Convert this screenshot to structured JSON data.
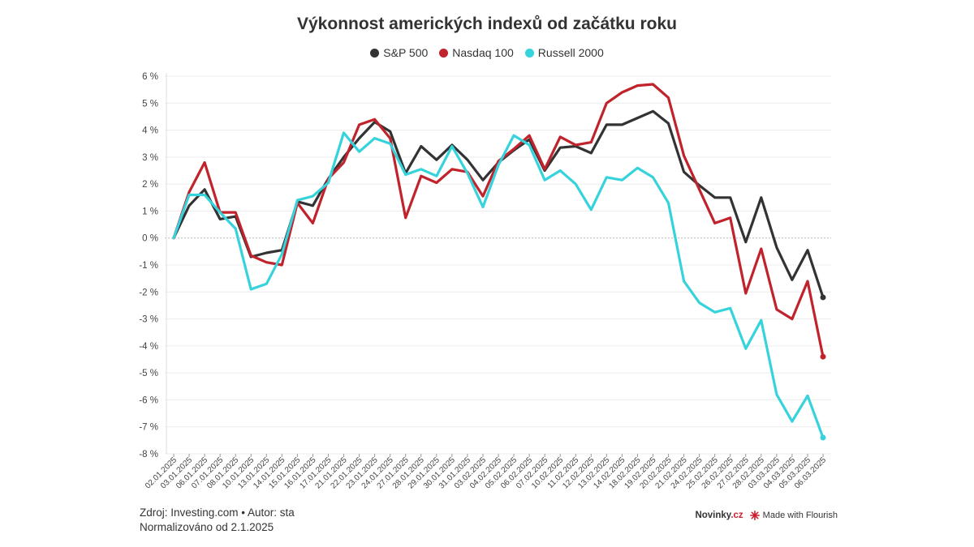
{
  "chart_data": {
    "type": "line",
    "title": "Výkonnost amerických indexů od začátku roku",
    "xlabel": "",
    "ylabel": "",
    "ylim": [
      -8,
      6
    ],
    "yticks": [
      6,
      5,
      4,
      3,
      2,
      1,
      0,
      -1,
      -2,
      -3,
      -4,
      -5,
      -6,
      -7,
      -8
    ],
    "ytick_labels": [
      "6 %",
      "5 %",
      "4 %",
      "3 %",
      "2 %",
      "1 %",
      "0 %",
      "-1 %",
      "-2 %",
      "-3 %",
      "-4 %",
      "-5 %",
      "-6 %",
      "-7 %",
      "-8 %"
    ],
    "grid": true,
    "legend_position": "top-center",
    "x": [
      "02.01.2025",
      "03.01.2025",
      "06.01.2025",
      "07.01.2025",
      "08.01.2025",
      "10.01.2025",
      "13.01.2025",
      "14.01.2025",
      "15.01.2025",
      "16.01.2025",
      "17.01.2025",
      "21.01.2025",
      "22.01.2025",
      "23.01.2025",
      "24.01.2025",
      "27.01.2025",
      "28.01.2025",
      "29.01.2025",
      "30.01.2025",
      "31.01.2025",
      "03.02.2025",
      "04.02.2025",
      "05.02.2025",
      "06.02.2025",
      "07.02.2025",
      "10.02.2025",
      "11.02.2025",
      "12.02.2025",
      "13.02.2025",
      "14.02.2025",
      "18.02.2025",
      "19.02.2025",
      "20.02.2025",
      "21.02.2025",
      "24.02.2025",
      "25.02.2025",
      "26.02.2025",
      "27.02.2025",
      "28.02.2025",
      "03.03.2025",
      "04.03.2025",
      "05.03.2025",
      "06.03.2025"
    ],
    "series": [
      {
        "name": "S&P 500",
        "color": "#333333",
        "values": [
          0,
          1.2,
          1.8,
          0.7,
          0.8,
          -0.7,
          -0.55,
          -0.45,
          1.35,
          1.2,
          2.2,
          3.0,
          3.7,
          4.3,
          3.95,
          2.4,
          3.4,
          2.9,
          3.45,
          2.9,
          2.15,
          2.8,
          3.25,
          3.65,
          2.5,
          3.35,
          3.4,
          3.15,
          4.2,
          4.2,
          4.45,
          4.7,
          4.25,
          2.45,
          1.95,
          1.5,
          1.5,
          -0.15,
          1.5,
          -0.35,
          -1.55,
          -0.45,
          -2.2
        ]
      },
      {
        "name": "Nasdaq 100",
        "color": "#c0232b",
        "values": [
          0,
          1.7,
          2.8,
          0.95,
          0.95,
          -0.65,
          -0.9,
          -1.0,
          1.3,
          0.55,
          2.2,
          2.8,
          4.2,
          4.4,
          3.7,
          0.75,
          2.3,
          2.05,
          2.55,
          2.45,
          1.55,
          2.85,
          3.3,
          3.8,
          2.55,
          3.75,
          3.45,
          3.55,
          5.0,
          5.4,
          5.65,
          5.7,
          5.2,
          3.05,
          1.8,
          0.55,
          0.75,
          -2.05,
          -0.4,
          -2.65,
          -3.0,
          -1.6,
          -4.4
        ]
      },
      {
        "name": "Russell 2000",
        "color": "#36d3dc",
        "values": [
          0,
          1.6,
          1.6,
          0.95,
          0.35,
          -1.9,
          -1.7,
          -0.6,
          1.4,
          1.55,
          2.05,
          3.9,
          3.2,
          3.7,
          3.5,
          2.35,
          2.55,
          2.3,
          3.4,
          2.4,
          1.15,
          2.7,
          3.8,
          3.45,
          2.15,
          2.5,
          2.0,
          1.05,
          2.25,
          2.15,
          2.6,
          2.25,
          1.3,
          -1.6,
          -2.4,
          -2.75,
          -2.6,
          -4.1,
          -3.05,
          -5.8,
          -6.8,
          -5.85,
          -7.4
        ]
      }
    ]
  },
  "footer": {
    "source": "Zdroj: Investing.com • Autor: sta",
    "note": "Normalizováno od 2.1.2025"
  },
  "brand": {
    "novinky_main": "Novinky",
    "novinky_dot": ".cz",
    "flourish": "Made with Flourish"
  }
}
